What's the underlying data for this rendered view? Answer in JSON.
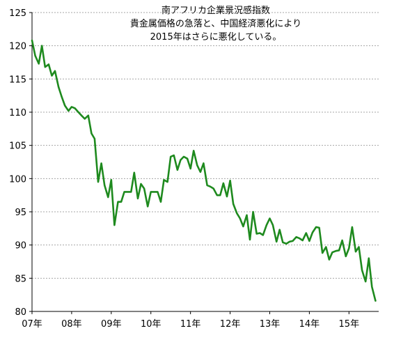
{
  "chart_data": {
    "type": "line",
    "title_lines": [
      "南アフリカ企業景況感指数",
      "貴金属価格の急落と、中国経済悪化により",
      "2015年はさらに悪化している。"
    ],
    "xlabel": "",
    "ylabel": "",
    "ylim": [
      80,
      125
    ],
    "yticks": [
      80,
      85,
      90,
      95,
      100,
      105,
      110,
      115,
      120,
      125
    ],
    "xlim": [
      2007.0,
      2015.75
    ],
    "xtick_labels": [
      "07年",
      "08年",
      "09年",
      "10年",
      "11年",
      "12年",
      "13年",
      "14年",
      "15年"
    ],
    "grid": "horizontal dashed",
    "line_color": "#1e8a1e",
    "series": [
      {
        "x": [
          2007.0,
          2007.08,
          2007.17,
          2007.25,
          2007.33,
          2007.42,
          2007.5,
          2007.58,
          2007.67,
          2007.75,
          2007.83,
          2007.92,
          2008.0,
          2008.08,
          2008.17,
          2008.25,
          2008.33,
          2008.42,
          2008.5,
          2008.58,
          2008.67,
          2008.75,
          2008.83,
          2008.92,
          2009.0,
          2009.08,
          2009.17,
          2009.25,
          2009.33,
          2009.42,
          2009.5,
          2009.58,
          2009.67,
          2009.75,
          2009.83,
          2009.92,
          2010.0,
          2010.08,
          2010.17,
          2010.25,
          2010.33,
          2010.42,
          2010.5,
          2010.58,
          2010.67,
          2010.75,
          2010.83,
          2010.92,
          2011.0,
          2011.08,
          2011.17,
          2011.25,
          2011.33,
          2011.42,
          2011.5,
          2011.58,
          2011.67,
          2011.75,
          2011.83,
          2011.92,
          2012.0,
          2012.08,
          2012.17,
          2012.25,
          2012.33,
          2012.42,
          2012.5,
          2012.58,
          2012.67,
          2012.75,
          2012.83,
          2012.92,
          2013.0,
          2013.08,
          2013.17,
          2013.25,
          2013.33,
          2013.42,
          2013.5,
          2013.58,
          2013.67,
          2013.75,
          2013.83,
          2013.92,
          2014.0,
          2014.08,
          2014.17,
          2014.25,
          2014.33,
          2014.42,
          2014.5,
          2014.58,
          2014.67,
          2014.75,
          2014.83,
          2014.92,
          2015.0,
          2015.08,
          2015.17,
          2015.25,
          2015.33,
          2015.42,
          2015.5,
          2015.58,
          2015.67
        ],
        "values": [
          120.8,
          118.5,
          117.3,
          120.0,
          116.8,
          117.2,
          115.5,
          116.2,
          113.8,
          112.3,
          111.0,
          110.2,
          110.8,
          110.6,
          110.0,
          109.5,
          109.0,
          109.5,
          106.8,
          106.0,
          99.5,
          102.3,
          99.0,
          97.2,
          99.8,
          93.0,
          96.5,
          96.5,
          98.0,
          98.0,
          98.0,
          100.9,
          97.0,
          99.2,
          98.5,
          95.8,
          98.0,
          98.0,
          98.0,
          96.5,
          99.8,
          99.5,
          103.3,
          103.5,
          101.3,
          102.8,
          103.3,
          103.0,
          101.5,
          104.2,
          102.0,
          101.0,
          102.3,
          99.0,
          98.8,
          98.5,
          97.5,
          97.5,
          99.3,
          97.3,
          99.7,
          96.2,
          94.8,
          94.0,
          92.8,
          94.5,
          90.8,
          95.0,
          91.7,
          91.8,
          91.5,
          93.0,
          94.0,
          93.0,
          90.5,
          92.3,
          90.4,
          90.2,
          90.5,
          90.6,
          91.2,
          91.0,
          90.7,
          91.8,
          90.6,
          91.9,
          92.7,
          92.6,
          88.8,
          89.7,
          87.8,
          88.9,
          89.1,
          89.2,
          90.7,
          88.3,
          89.5,
          92.7,
          89.0,
          89.7,
          86.2,
          84.5,
          88.0,
          83.7,
          81.6
        ]
      }
    ]
  }
}
